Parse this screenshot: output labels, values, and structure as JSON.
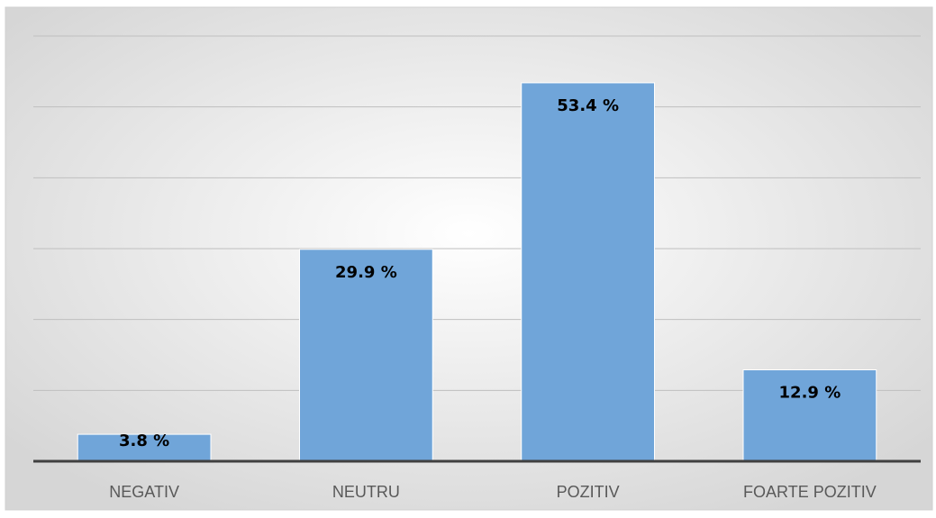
{
  "chart_data": {
    "type": "bar",
    "categories": [
      "NEGATIV",
      "NEUTRU",
      "POZITIV",
      "FOARTE POZITIV"
    ],
    "values": [
      3.8,
      29.9,
      53.4,
      12.9
    ],
    "value_labels": [
      "3.8 %",
      "29.9 %",
      "53.4 %",
      "12.9 %"
    ],
    "color": "#70a5d9",
    "ylim": [
      0,
      60
    ],
    "yticks": [
      0,
      10,
      20,
      30,
      40,
      50,
      60
    ],
    "grid": true
  }
}
